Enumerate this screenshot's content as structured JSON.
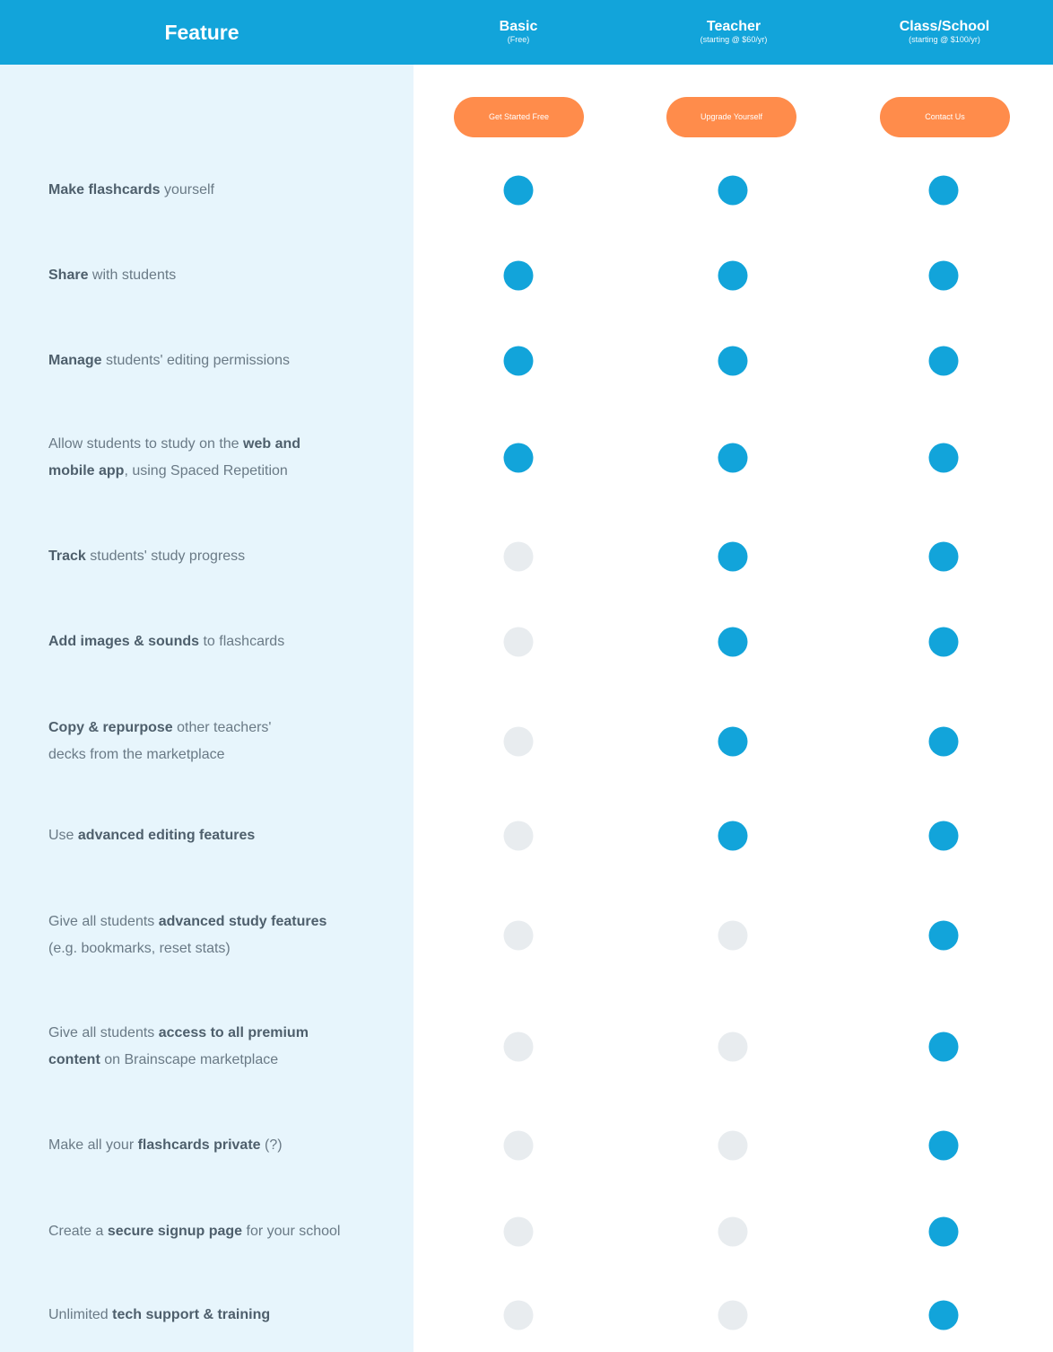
{
  "header": {
    "feature_title": "Feature",
    "plans": [
      {
        "name": "Basic",
        "price": "(Free)",
        "cta": "Get Started Free"
      },
      {
        "name": "Teacher",
        "price": "(starting @ $60/yr)",
        "cta": "Upgrade Yourself"
      },
      {
        "name": "Class/School",
        "price": "(starting @ $100/yr)",
        "cta": "Contact Us"
      }
    ]
  },
  "colors": {
    "accent": "#12a4da",
    "cta": "#ff8c4b",
    "sidebar": "#e7f5fc",
    "inactive": "#e8ecef"
  },
  "features": [
    {
      "parts": [
        {
          "t": "Make flashcards",
          "b": true
        },
        {
          "t": " yourself",
          "b": false
        }
      ],
      "available": [
        true,
        true,
        true
      ]
    },
    {
      "parts": [
        {
          "t": "Share",
          "b": true
        },
        {
          "t": " with students",
          "b": false
        }
      ],
      "available": [
        true,
        true,
        true
      ]
    },
    {
      "parts": [
        {
          "t": "Manage",
          "b": true
        },
        {
          "t": " students' editing permissions",
          "b": false
        }
      ],
      "available": [
        true,
        true,
        true
      ]
    },
    {
      "parts": [
        {
          "t": "Allow students to study on the ",
          "b": false
        },
        {
          "t": "web and mobile app",
          "b": true
        },
        {
          "t": ", using Spaced Repetition",
          "b": false
        }
      ],
      "available": [
        true,
        true,
        true
      ]
    },
    {
      "parts": [
        {
          "t": "Track",
          "b": true
        },
        {
          "t": " students' study progress",
          "b": false
        }
      ],
      "available": [
        false,
        true,
        true
      ]
    },
    {
      "parts": [
        {
          "t": "Add images & sounds",
          "b": true
        },
        {
          "t": " to flashcards",
          "b": false
        }
      ],
      "available": [
        false,
        true,
        true
      ]
    },
    {
      "parts": [
        {
          "t": "Copy & repurpose",
          "b": true
        },
        {
          "t": " other teachers' decks from the marketplace",
          "b": false
        }
      ],
      "available": [
        false,
        true,
        true
      ]
    },
    {
      "parts": [
        {
          "t": "Use ",
          "b": false
        },
        {
          "t": "advanced editing features",
          "b": true
        }
      ],
      "available": [
        false,
        true,
        true
      ]
    },
    {
      "parts": [
        {
          "t": "Give all students ",
          "b": false
        },
        {
          "t": "advanced study features",
          "b": true
        },
        {
          "t": " (e.g. bookmarks, reset stats)",
          "b": false
        }
      ],
      "available": [
        false,
        false,
        true
      ]
    },
    {
      "parts": [
        {
          "t": "Give all students ",
          "b": false
        },
        {
          "t": "access to all premium content",
          "b": true
        },
        {
          "t": " on Brainscape marketplace",
          "b": false
        }
      ],
      "available": [
        false,
        false,
        true
      ]
    },
    {
      "parts": [
        {
          "t": "Make all your ",
          "b": false
        },
        {
          "t": "flashcards private",
          "b": true
        },
        {
          "t": " (?)",
          "b": false
        }
      ],
      "available": [
        false,
        false,
        true
      ]
    },
    {
      "parts": [
        {
          "t": "Create a ",
          "b": false
        },
        {
          "t": "secure signup page",
          "b": true
        },
        {
          "t": " for your school",
          "b": false
        }
      ],
      "available": [
        false,
        false,
        true
      ]
    },
    {
      "parts": [
        {
          "t": "Unlimited ",
          "b": false
        },
        {
          "t": "tech support & training",
          "b": true
        }
      ],
      "available": [
        false,
        false,
        true
      ]
    }
  ]
}
